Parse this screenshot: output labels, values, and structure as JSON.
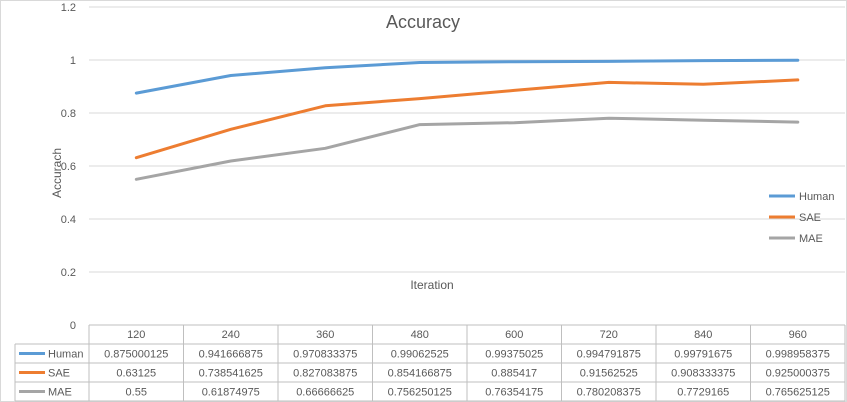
{
  "chart_data": {
    "type": "line",
    "title": "Accuracy",
    "xlabel": "Iteration",
    "ylabel": "Accurach",
    "ylim": [
      0,
      1.2
    ],
    "yticks": [
      "0",
      "0.2",
      "0.4",
      "0.6",
      "0.8",
      "1",
      "1.2"
    ],
    "grid": "horizontal",
    "legend_position": "right",
    "categories": [
      "120",
      "240",
      "360",
      "480",
      "600",
      "720",
      "840",
      "960"
    ],
    "series": [
      {
        "name": "Human",
        "color": "#5B9BD5",
        "values": [
          0.875000125,
          0.941666875,
          0.970833375,
          0.99062525,
          0.99375025,
          0.994791875,
          0.99791675,
          0.998958375
        ],
        "labels": [
          "0.875000125",
          "0.941666875",
          "0.970833375",
          "0.99062525",
          "0.99375025",
          "0.994791875",
          "0.99791675",
          "0.998958375"
        ]
      },
      {
        "name": "SAE",
        "color": "#ED7D31",
        "values": [
          0.63125,
          0.738541625,
          0.827083875,
          0.854166875,
          0.885417,
          0.91562525,
          0.908333375,
          0.925000375
        ],
        "labels": [
          "0.63125",
          "0.738541625",
          "0.827083875",
          "0.854166875",
          "0.885417",
          "0.91562525",
          "0.908333375",
          "0.925000375"
        ]
      },
      {
        "name": "MAE",
        "color": "#A5A5A5",
        "values": [
          0.55,
          0.61874975,
          0.66666625,
          0.756250125,
          0.76354175,
          0.780208375,
          0.7729165,
          0.765625125
        ],
        "labels": [
          "0.55",
          "0.61874975",
          "0.66666625",
          "0.756250125",
          "0.76354175",
          "0.780208375",
          "0.7729165",
          "0.765625125"
        ]
      }
    ]
  }
}
